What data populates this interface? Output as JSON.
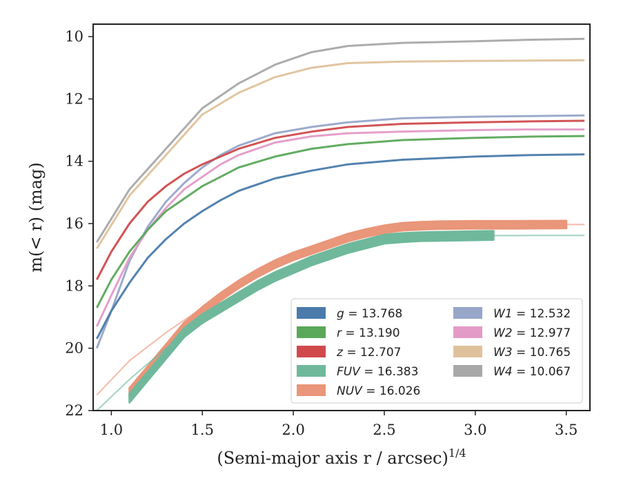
{
  "chart_data": {
    "type": "line",
    "xlabel": "(Semi-major axis r / arcsec)",
    "xlabel_exponent": "1/4",
    "ylabel": "m(< r) (mag)",
    "xlim": [
      0.9,
      3.63
    ],
    "ylim": [
      22,
      9.6
    ],
    "y_inverted": true,
    "grid": false,
    "legend_position": "lower-right",
    "x_ticks": [
      "1.0",
      "1.5",
      "2.0",
      "2.5",
      "3.0",
      "3.5"
    ],
    "x_tick_values": [
      1.0,
      1.5,
      2.0,
      2.5,
      3.0,
      3.5
    ],
    "y_ticks": [
      "10",
      "12",
      "14",
      "16",
      "18",
      "20",
      "22"
    ],
    "y_tick_values": [
      10,
      12,
      14,
      16,
      18,
      20,
      22
    ],
    "series": [
      {
        "name": "W4",
        "label": "W4 = 10.067",
        "color": "#a8a8a8",
        "x": [
          0.92,
          1.1,
          1.3,
          1.5,
          1.7,
          1.9,
          2.1,
          2.3,
          2.6,
          3.0,
          3.3,
          3.6
        ],
        "y": [
          16.6,
          14.9,
          13.6,
          12.3,
          11.5,
          10.9,
          10.5,
          10.3,
          10.2,
          10.15,
          10.1,
          10.07
        ]
      },
      {
        "name": "W3",
        "label": "W3 = 10.765",
        "color": "#dfc29b",
        "x": [
          0.92,
          1.1,
          1.3,
          1.5,
          1.7,
          1.9,
          2.1,
          2.3,
          2.6,
          3.0,
          3.3,
          3.6
        ],
        "y": [
          16.8,
          15.1,
          13.8,
          12.5,
          11.8,
          11.3,
          11.0,
          10.85,
          10.8,
          10.78,
          10.77,
          10.76
        ]
      },
      {
        "name": "W1",
        "label": "W1 = 12.532",
        "color": "#97a6c9",
        "x": [
          0.92,
          1.0,
          1.1,
          1.2,
          1.3,
          1.4,
          1.5,
          1.6,
          1.7,
          1.9,
          2.1,
          2.3,
          2.6,
          3.0,
          3.3,
          3.6
        ],
        "y": [
          20.0,
          18.8,
          17.2,
          16.1,
          15.3,
          14.7,
          14.2,
          13.8,
          13.5,
          13.1,
          12.9,
          12.75,
          12.62,
          12.57,
          12.55,
          12.53
        ]
      },
      {
        "name": "W2",
        "label": "W2 = 12.977",
        "color": "#e49ac7",
        "x": [
          0.92,
          1.0,
          1.1,
          1.2,
          1.3,
          1.4,
          1.5,
          1.6,
          1.7,
          1.9,
          2.1,
          2.3,
          2.6,
          3.0,
          3.3,
          3.6
        ],
        "y": [
          19.3,
          18.3,
          17.1,
          16.2,
          15.5,
          14.9,
          14.5,
          14.1,
          13.8,
          13.4,
          13.2,
          13.1,
          13.05,
          13.0,
          12.98,
          12.98
        ]
      },
      {
        "name": "z",
        "label": "z = 12.707",
        "color": "#d04a4c",
        "x": [
          0.92,
          1.0,
          1.1,
          1.2,
          1.3,
          1.4,
          1.5,
          1.6,
          1.7,
          1.9,
          2.1,
          2.3,
          2.6,
          3.0,
          3.3,
          3.6
        ],
        "y": [
          17.8,
          16.9,
          16.0,
          15.3,
          14.8,
          14.4,
          14.1,
          13.85,
          13.6,
          13.25,
          13.05,
          12.9,
          12.8,
          12.75,
          12.72,
          12.7
        ]
      },
      {
        "name": "r",
        "label": "r = 13.190",
        "color": "#5aa85a",
        "x": [
          0.92,
          1.0,
          1.1,
          1.2,
          1.3,
          1.4,
          1.5,
          1.6,
          1.7,
          1.9,
          2.1,
          2.3,
          2.6,
          3.0,
          3.3,
          3.6
        ],
        "y": [
          18.7,
          17.8,
          16.9,
          16.2,
          15.6,
          15.2,
          14.8,
          14.5,
          14.2,
          13.85,
          13.6,
          13.45,
          13.32,
          13.25,
          13.21,
          13.19
        ]
      },
      {
        "name": "g",
        "label": "g = 13.768",
        "color": "#4a7bab",
        "x": [
          0.92,
          1.0,
          1.1,
          1.2,
          1.3,
          1.4,
          1.5,
          1.6,
          1.7,
          1.9,
          2.1,
          2.3,
          2.6,
          3.0,
          3.3,
          3.6
        ],
        "y": [
          19.7,
          18.8,
          17.9,
          17.1,
          16.5,
          16.0,
          15.6,
          15.25,
          14.95,
          14.55,
          14.3,
          14.1,
          13.95,
          13.85,
          13.8,
          13.78
        ]
      },
      {
        "name": "NUV",
        "label": "NUV = 16.026",
        "color": "#e9967a",
        "band_halfwidth": 0.12,
        "x": [
          1.1,
          1.2,
          1.3,
          1.4,
          1.5,
          1.6,
          1.7,
          1.8,
          1.9,
          2.0,
          2.1,
          2.2,
          2.3,
          2.4,
          2.5,
          2.6,
          2.7,
          2.8,
          3.0,
          3.2,
          3.5
        ],
        "y": [
          21.4,
          20.7,
          20.0,
          19.3,
          18.8,
          18.35,
          17.95,
          17.6,
          17.3,
          17.05,
          16.85,
          16.65,
          16.45,
          16.3,
          16.18,
          16.1,
          16.07,
          16.05,
          16.04,
          16.04,
          16.03
        ],
        "thin_tail_x": [
          0.92,
          1.1,
          1.3,
          1.5,
          1.7,
          1.9,
          2.1,
          2.3,
          2.5,
          2.7,
          3.0,
          3.3,
          3.6
        ],
        "thin_tail_y": [
          21.5,
          20.4,
          19.5,
          18.7,
          18.0,
          17.4,
          16.9,
          16.5,
          16.2,
          16.05,
          16.03,
          16.03,
          16.03
        ]
      },
      {
        "name": "FUV",
        "label": "FUV = 16.383",
        "color": "#6fb89c",
        "band_halfwidth": 0.14,
        "x": [
          1.1,
          1.2,
          1.3,
          1.4,
          1.5,
          1.6,
          1.7,
          1.8,
          1.9,
          2.0,
          2.1,
          2.2,
          2.3,
          2.4,
          2.5,
          2.6,
          2.7,
          2.8,
          3.0,
          3.1
        ],
        "y": [
          21.6,
          20.9,
          20.2,
          19.5,
          19.05,
          18.7,
          18.35,
          18.0,
          17.7,
          17.45,
          17.2,
          17.0,
          16.8,
          16.65,
          16.5,
          16.45,
          16.42,
          16.41,
          16.39,
          16.38
        ],
        "thin_tail_x": [
          0.92,
          1.1,
          1.3,
          1.5,
          1.7,
          1.9,
          2.1,
          2.3,
          2.5,
          2.7,
          3.0,
          3.3,
          3.6
        ],
        "thin_tail_y": [
          22.0,
          21.0,
          20.0,
          19.2,
          18.4,
          17.7,
          17.2,
          16.8,
          16.5,
          16.42,
          16.39,
          16.38,
          16.38
        ]
      }
    ],
    "legend": {
      "col1": [
        "g",
        "r",
        "z",
        "FUV",
        "NUV"
      ],
      "col2": [
        "W1",
        "W2",
        "W3",
        "W4"
      ]
    }
  }
}
